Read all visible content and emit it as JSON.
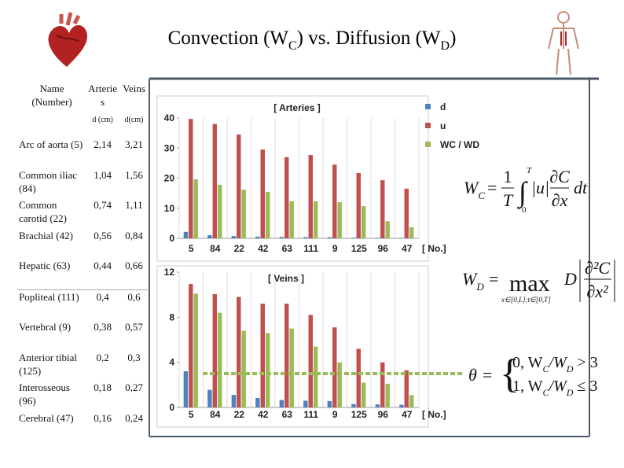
{
  "title": [
    "Convection (W",
    "C",
    ") vs. Diffusion (W",
    "D",
    ")"
  ],
  "table": {
    "header": [
      "Name (Number)",
      "Arteries",
      "Veins"
    ],
    "subheader": [
      "d (cm)",
      "d(cm)"
    ],
    "rows": [
      [
        "Arc of aorta (5)",
        "2,14",
        "3,21"
      ],
      [
        "Common iliac (84)",
        "1,04",
        "1,56"
      ],
      [
        "Common carotid (22)",
        "0,74",
        "1,11"
      ],
      [
        "Brachial (42)",
        "0,56",
        "0,84"
      ],
      [
        "Hepatic (63)",
        "0,44",
        "0,66"
      ],
      [
        "Popliteal (111)",
        "0,4",
        "0,6"
      ],
      [
        "Vertebral (9)",
        "0,38",
        "0,57"
      ],
      [
        "Anterior tibial (125)",
        "0,2",
        "0,3"
      ],
      [
        "Interosseous (96)",
        "0,18",
        "0,27"
      ],
      [
        "Cerebral (47)",
        "0,16",
        "0,24"
      ]
    ]
  },
  "chart_data": [
    {
      "type": "bar",
      "title": "[ Arteries ]",
      "x_label": "[ No.]",
      "categories": [
        "5",
        "84",
        "22",
        "42",
        "63",
        "111",
        "9",
        "125",
        "96",
        "47"
      ],
      "ylim": [
        0,
        40
      ],
      "yticks": [
        0,
        10,
        20,
        30,
        40
      ],
      "legend": "right",
      "series": [
        {
          "name": "d",
          "color": "#4f81bd",
          "values": [
            2.14,
            1.04,
            0.74,
            0.56,
            0.44,
            0.4,
            0.38,
            0.2,
            0.18,
            0.16
          ]
        },
        {
          "name": "u",
          "color": "#c0504d",
          "values": [
            39.7,
            38,
            34.5,
            29.5,
            27,
            27.7,
            24.5,
            21.7,
            19.3,
            16.5
          ]
        },
        {
          "name": "WC / WD",
          "color": "#9bbb59",
          "values": [
            19.6,
            17.8,
            16.2,
            15.4,
            12.3,
            12.3,
            12,
            10.7,
            5.7,
            3.7
          ]
        }
      ]
    },
    {
      "type": "bar",
      "title": "[ Veins ]",
      "x_label": "[ No.]",
      "categories": [
        "5",
        "84",
        "22",
        "42",
        "63",
        "111",
        "9",
        "125",
        "96",
        "47"
      ],
      "ylim": [
        0,
        12
      ],
      "yticks": [
        0,
        4,
        8,
        12
      ],
      "reference_line": 3,
      "series": [
        {
          "color": "#4f81bd",
          "values": [
            3.21,
            1.56,
            1.11,
            0.84,
            0.66,
            0.6,
            0.57,
            0.3,
            0.27,
            0.24
          ]
        },
        {
          "color": "#c0504d",
          "values": [
            10.95,
            10.05,
            9.8,
            9.2,
            9.2,
            8.2,
            7.1,
            5.2,
            4.0,
            3.3
          ]
        },
        {
          "color": "#9bbb59",
          "values": [
            10.1,
            8.4,
            6.8,
            6.6,
            7.0,
            5.4,
            4.0,
            2.2,
            2.1,
            1.1
          ]
        }
      ]
    }
  ],
  "equations": [
    {
      "tokens": [
        "W",
        "C",
        "=",
        "1",
        "T",
        "∫",
        "T",
        "0",
        "|u|",
        "∂C",
        "∂x",
        "dt"
      ]
    },
    {
      "tokens": [
        "W",
        "D",
        "=",
        "max",
        "x∈[0,L];t∈[0,T]",
        "D",
        "∂²C",
        "∂x²"
      ]
    },
    {
      "tokens": [
        "θ",
        "=",
        "0, W",
        "C",
        "/W",
        "D",
        " > 3",
        "1, W",
        "C",
        "/W",
        "D",
        " ≤ 3"
      ]
    }
  ]
}
